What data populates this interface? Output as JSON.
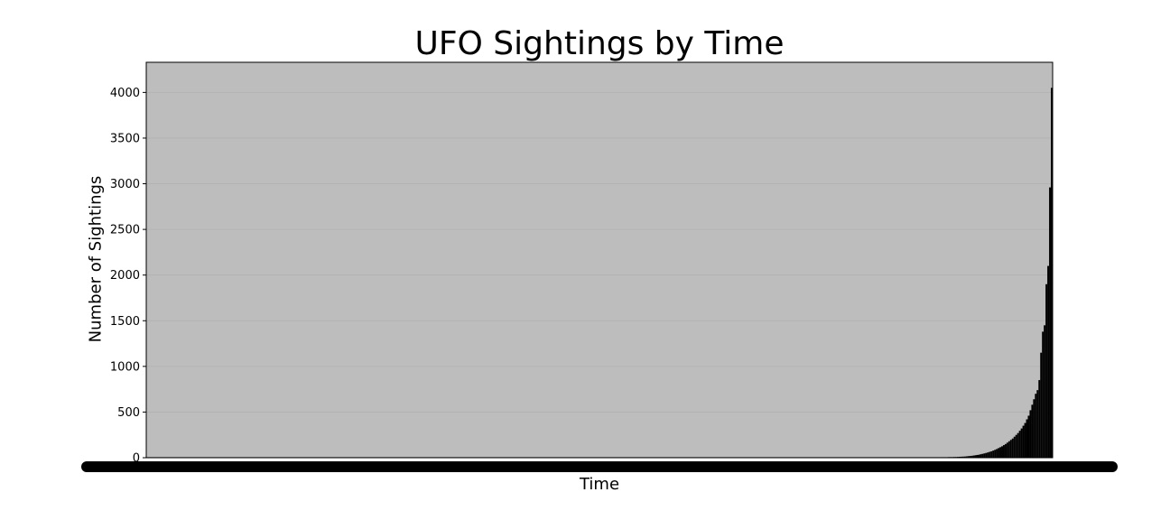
{
  "chart_data": {
    "type": "bar",
    "title": "UFO Sightings by Time",
    "xlabel": "Time",
    "ylabel": "Number of Sightings",
    "ylim": [
      0,
      4330
    ],
    "yticks": [
      0,
      500,
      1000,
      1500,
      2000,
      2500,
      3000,
      3500,
      4000
    ],
    "grid": true,
    "legend": "none",
    "bar_color": "#000000",
    "edge_color": "#bdbdbd",
    "category_count": 500,
    "values_note_free": true,
    "values": [
      1,
      1,
      1,
      1,
      1,
      1,
      1,
      1,
      1,
      1,
      1,
      1,
      1,
      1,
      1,
      1,
      1,
      1,
      1,
      1,
      1,
      1,
      1,
      1,
      1,
      1,
      1,
      1,
      1,
      1,
      1,
      1,
      1,
      1,
      1,
      1,
      1,
      1,
      1,
      1,
      1,
      1,
      1,
      1,
      1,
      1,
      1,
      1,
      1,
      1,
      1,
      1,
      1,
      1,
      1,
      1,
      1,
      1,
      1,
      1,
      1,
      1,
      1,
      1,
      1,
      1,
      1,
      1,
      1,
      1,
      1,
      1,
      1,
      1,
      1,
      1,
      1,
      1,
      1,
      1,
      1,
      1,
      1,
      1,
      1,
      1,
      1,
      1,
      1,
      1,
      1,
      1,
      1,
      1,
      1,
      1,
      1,
      1,
      1,
      1,
      1,
      1,
      1,
      1,
      1,
      1,
      1,
      1,
      1,
      1,
      1,
      1,
      1,
      1,
      1,
      1,
      1,
      1,
      1,
      1,
      1,
      1,
      1,
      1,
      1,
      1,
      1,
      1,
      1,
      1,
      1,
      1,
      1,
      1,
      1,
      1,
      1,
      1,
      1,
      1,
      1,
      1,
      1,
      1,
      1,
      1,
      1,
      1,
      1,
      1,
      1,
      1,
      1,
      1,
      1,
      1,
      1,
      1,
      1,
      1,
      1,
      1,
      1,
      1,
      1,
      1,
      1,
      1,
      1,
      1,
      1,
      1,
      1,
      1,
      1,
      1,
      1,
      1,
      1,
      1,
      1,
      1,
      1,
      1,
      1,
      1,
      1,
      1,
      1,
      1,
      1,
      1,
      1,
      1,
      1,
      1,
      1,
      1,
      1,
      1,
      1,
      1,
      1,
      1,
      1,
      1,
      1,
      1,
      1,
      1,
      2,
      2,
      2,
      2,
      2,
      2,
      2,
      2,
      2,
      2,
      2,
      2,
      2,
      2,
      2,
      2,
      2,
      2,
      2,
      2,
      2,
      2,
      2,
      2,
      2,
      2,
      2,
      2,
      2,
      2,
      2,
      2,
      2,
      2,
      2,
      2,
      2,
      2,
      2,
      2,
      2,
      2,
      2,
      2,
      2,
      2,
      2,
      2,
      2,
      2,
      2,
      2,
      2,
      2,
      2,
      2,
      2,
      2,
      2,
      2,
      2,
      2,
      2,
      2,
      2,
      2,
      2,
      2,
      2,
      2,
      2,
      2,
      2,
      2,
      2,
      2,
      2,
      2,
      2,
      2,
      2,
      2,
      2,
      2,
      2,
      2,
      2,
      2,
      2,
      2,
      2,
      2,
      2,
      2,
      2,
      2,
      2,
      2,
      2,
      2,
      2,
      2,
      2,
      2,
      2,
      2,
      2,
      2,
      2,
      2,
      2,
      2,
      2,
      2,
      2,
      2,
      2,
      2,
      2,
      2,
      2,
      2,
      2,
      2,
      2,
      2,
      2,
      2,
      2,
      2,
      2,
      2,
      2,
      2,
      2,
      2,
      2,
      2,
      2,
      2,
      2,
      2,
      2,
      2,
      3,
      3,
      3,
      3,
      3,
      3,
      3,
      3,
      3,
      3,
      3,
      3,
      3,
      3,
      3,
      3,
      3,
      3,
      3,
      3,
      3,
      3,
      3,
      3,
      3,
      3,
      3,
      3,
      3,
      3,
      3,
      3,
      3,
      3,
      3,
      3,
      3,
      3,
      3,
      3,
      3,
      3,
      3,
      3,
      3,
      3,
      3,
      3,
      3,
      3,
      3,
      3,
      3,
      3,
      3,
      3,
      3,
      3,
      3,
      3,
      4,
      4,
      4,
      4,
      4,
      4,
      4,
      4,
      4,
      4,
      4,
      4,
      4,
      4,
      4,
      4,
      4,
      4,
      4,
      4,
      4,
      4,
      4,
      4,
      4,
      4,
      5,
      5,
      5,
      5,
      5,
      5,
      5,
      5,
      6,
      6,
      6,
      6,
      7,
      7,
      7,
      8,
      8,
      9,
      10,
      11,
      12,
      13,
      15,
      17,
      19,
      21,
      24,
      27,
      30,
      33,
      38,
      42,
      47,
      52,
      58,
      64,
      70,
      78,
      86,
      95,
      105,
      115,
      125,
      138,
      150,
      165,
      180,
      195,
      210,
      230,
      250,
      270,
      295,
      320,
      350,
      380,
      420,
      460,
      520,
      580,
      640,
      700,
      740,
      850,
      1150,
      1380,
      1450,
      1900,
      2100,
      2960,
      4050
    ]
  }
}
